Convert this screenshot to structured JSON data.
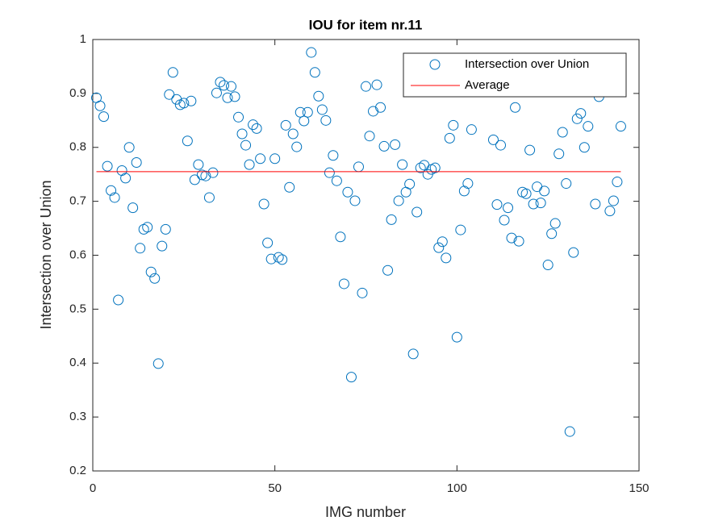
{
  "chart_data": {
    "type": "scatter",
    "title": "IOU for item nr.11",
    "x_label": "IMG number",
    "y_label": "Intersection over Union",
    "xlim": [
      0,
      150
    ],
    "xticks": [
      0,
      50,
      100,
      150
    ],
    "ylim": [
      0.2,
      1
    ],
    "yticks": [
      0.2,
      0.3,
      0.4,
      0.5,
      0.6,
      0.7,
      0.8,
      0.9,
      1
    ],
    "legend": "top-right",
    "series": [
      {
        "name": "Intersection over Union",
        "color": "#0072bd",
        "mode": "markers",
        "x": [
          1,
          2,
          3,
          4,
          5,
          6,
          7,
          8,
          9,
          10,
          11,
          12,
          13,
          14,
          15,
          16,
          17,
          18,
          19,
          20,
          21,
          22,
          23,
          24,
          25,
          26,
          27,
          28,
          29,
          30,
          31,
          32,
          33,
          34,
          35,
          36,
          37,
          38,
          39,
          40,
          41,
          42,
          43,
          44,
          45,
          46,
          47,
          48,
          49,
          50,
          51,
          52,
          53,
          54,
          55,
          56,
          57,
          58,
          59,
          60,
          61,
          62,
          63,
          64,
          65,
          66,
          67,
          68,
          69,
          70,
          71,
          72,
          73,
          74,
          75,
          76,
          77,
          78,
          79,
          80,
          81,
          82,
          83,
          84,
          85,
          86,
          87,
          88,
          89,
          90,
          91,
          92,
          93,
          94,
          95,
          96,
          97,
          98,
          99,
          100,
          101,
          102,
          103,
          104,
          110,
          111,
          112,
          113,
          114,
          115,
          116,
          117,
          118,
          119,
          120,
          121,
          122,
          123,
          124,
          125,
          126,
          127,
          128,
          129,
          130,
          131,
          132,
          133,
          134,
          135,
          136,
          138,
          139,
          142,
          143,
          144,
          145
        ],
        "values": [
          0.892,
          0.877,
          0.857,
          0.765,
          0.72,
          0.707,
          0.517,
          0.757,
          0.743,
          0.8,
          0.688,
          0.772,
          0.613,
          0.648,
          0.652,
          0.569,
          0.557,
          0.399,
          0.617,
          0.648,
          0.898,
          0.939,
          0.889,
          0.879,
          0.882,
          0.812,
          0.886,
          0.74,
          0.768,
          0.749,
          0.747,
          0.707,
          0.753,
          0.901,
          0.921,
          0.915,
          0.892,
          0.913,
          0.894,
          0.856,
          0.825,
          0.804,
          0.768,
          0.842,
          0.835,
          0.779,
          0.695,
          0.623,
          0.593,
          0.779,
          0.596,
          0.592,
          0.841,
          0.726,
          0.825,
          0.801,
          0.865,
          0.849,
          0.865,
          0.976,
          0.939,
          0.895,
          0.87,
          0.85,
          0.753,
          0.785,
          0.738,
          0.634,
          0.547,
          0.717,
          0.374,
          0.701,
          0.764,
          0.53,
          0.913,
          0.821,
          0.867,
          0.916,
          0.874,
          0.802,
          0.572,
          0.666,
          0.805,
          0.701,
          0.768,
          0.717,
          0.732,
          0.417,
          0.68,
          0.762,
          0.767,
          0.75,
          0.759,
          0.762,
          0.614,
          0.625,
          0.595,
          0.817,
          0.841,
          0.448,
          0.647,
          0.719,
          0.733,
          0.833,
          0.814,
          0.694,
          0.804,
          0.665,
          0.688,
          0.632,
          0.874,
          0.626,
          0.717,
          0.714,
          0.795,
          0.695,
          0.727,
          0.697,
          0.719,
          0.582,
          0.64,
          0.659,
          0.788,
          0.828,
          0.733,
          0.273,
          0.605,
          0.853,
          0.863,
          0.8,
          0.839,
          0.695,
          0.894,
          0.682,
          0.701,
          0.736,
          0.839
        ]
      },
      {
        "name": "Average",
        "color": "#ff0000",
        "mode": "lines",
        "x": [
          1,
          145
        ],
        "values": [
          0.755,
          0.755
        ]
      }
    ]
  }
}
